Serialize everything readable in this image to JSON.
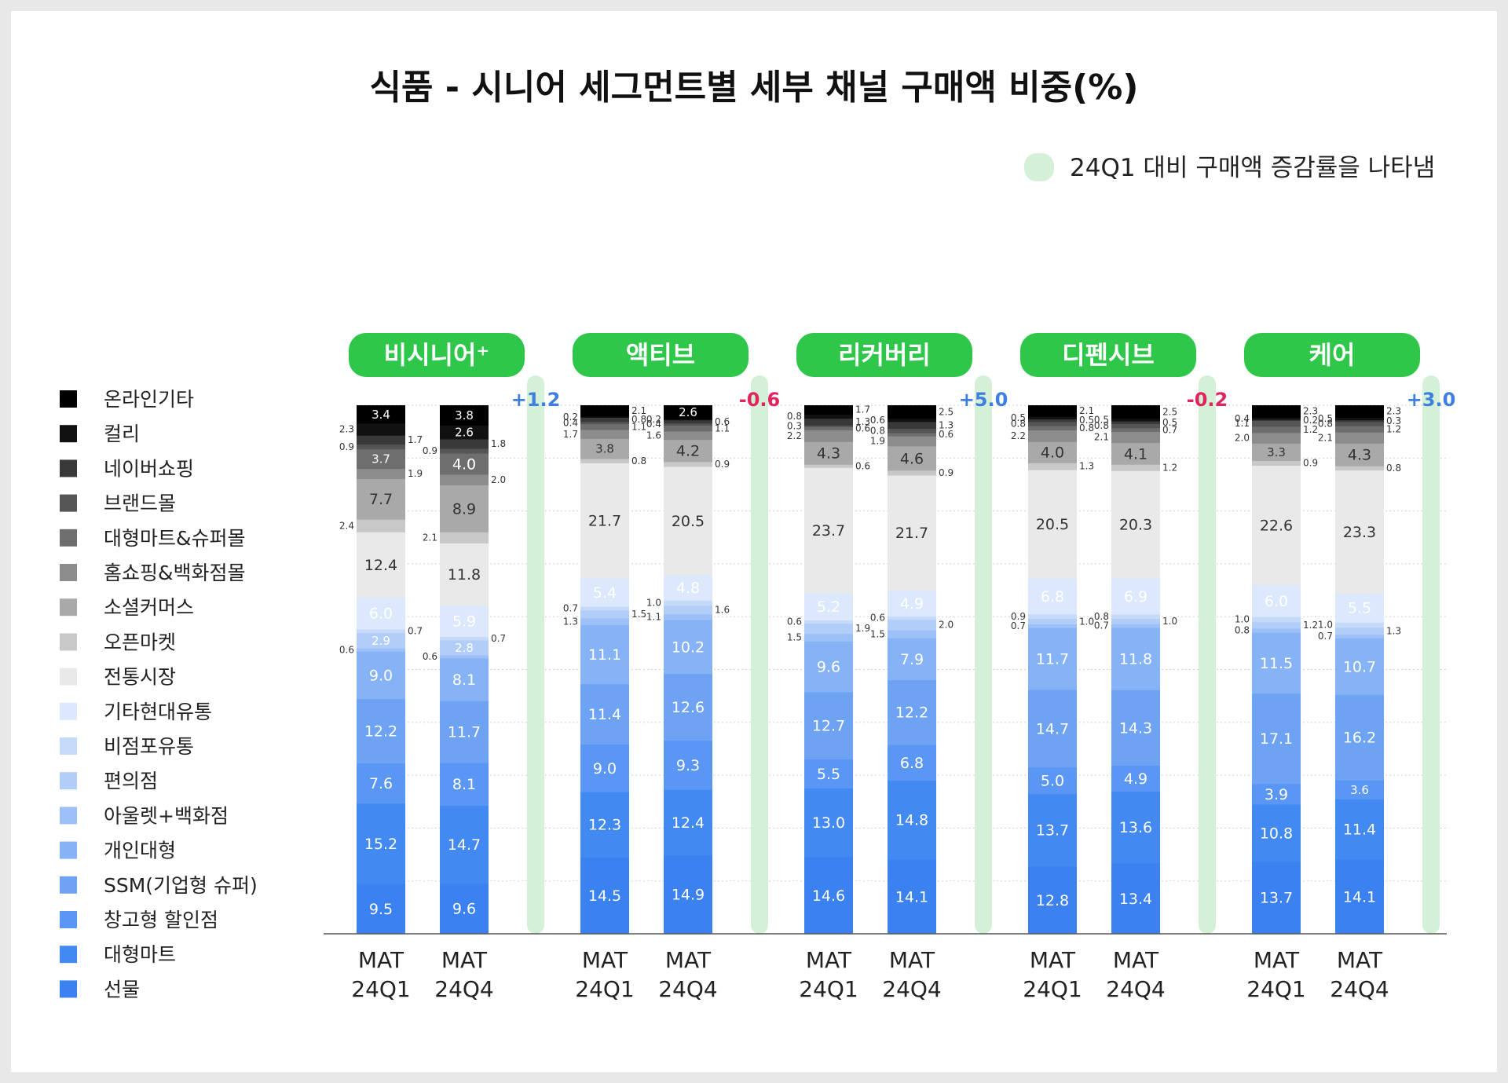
{
  "title": "식품 - 시니어 세그먼트별 세부 채널 구매액 비중(%)",
  "note": "24Q1 대비 구매액 증감률을 나타냄",
  "colors": {
    "segments": [
      "#3b82f0",
      "#4289f1",
      "#5a96f3",
      "#6ea3f4",
      "#86b2f6",
      "#9cc0f7",
      "#b1cdf8",
      "#c5daf9",
      "#dce8fb",
      "#e9e9e9",
      "#c8c8c8",
      "#a9a9a9",
      "#8c8c8c",
      "#6e6e6e",
      "#555555",
      "#393939",
      "#111111",
      "#000000"
    ],
    "group_label_bg": "#2ec74a",
    "indicator": "#d4f1d8",
    "positive": "#3f7fe0",
    "negative": "#e0245e"
  },
  "chart_data": {
    "type": "bar",
    "stacked": true,
    "ylim": [
      0,
      100
    ],
    "legend": [
      "온라인기타",
      "컬리",
      "네이버쇼핑",
      "브랜드몰",
      "대형마트&슈퍼몰",
      "홈쇼핑&백화점몰",
      "소셜커머스",
      "오픈마켓",
      "전통시장",
      "기타현대유통",
      "비점포유통",
      "편의점",
      "아울렛+백화점",
      "개인대형",
      "SSM(기업형 슈퍼)",
      "창고형 할인점",
      "대형마트",
      "선물"
    ],
    "segments_bottom_to_top": [
      "선물",
      "대형마트",
      "창고형 할인점",
      "SSM(기업형 슈퍼)",
      "개인대형",
      "아울렛+백화점",
      "편의점",
      "비점포유통",
      "기타현대유통",
      "전통시장",
      "오픈마켓",
      "소셜커머스",
      "홈쇼핑&백화점몰",
      "대형마트&슈퍼몰",
      "브랜드몰",
      "네이버쇼핑",
      "컬리",
      "온라인기타"
    ],
    "groups": [
      {
        "name": "비시니어⁺",
        "change": "+1.2",
        "bars": [
          {
            "label": "MAT 24Q1",
            "values": [
              9.5,
              15.2,
              7.6,
              12.2,
              9.0,
              0.6,
              2.9,
              0.7,
              6.0,
              12.4,
              2.4,
              7.7,
              1.9,
              3.7,
              0.9,
              1.7,
              2.3,
              3.4
            ]
          },
          {
            "label": "MAT 24Q4",
            "values": [
              9.6,
              14.7,
              8.1,
              11.7,
              8.1,
              0.6,
              2.8,
              0.7,
              5.9,
              11.8,
              2.1,
              8.9,
              2.0,
              4.0,
              0.9,
              1.8,
              2.6,
              3.8
            ]
          }
        ]
      },
      {
        "name": "액티브",
        "change": "-0.6",
        "bars": [
          {
            "label": "MAT 24Q1",
            "values": [
              14.5,
              12.3,
              9.0,
              11.4,
              11.1,
              1.3,
              1.5,
              0.7,
              5.4,
              21.7,
              0.8,
              3.8,
              1.7,
              1.1,
              0.4,
              0.8,
              0.2,
              2.1
            ]
          },
          {
            "label": "MAT 24Q4",
            "values": [
              14.9,
              12.4,
              9.3,
              12.6,
              10.2,
              1.1,
              1.6,
              1.0,
              4.8,
              20.5,
              0.9,
              4.2,
              1.6,
              1.1,
              0.4,
              0.6,
              0.2,
              2.6
            ]
          }
        ]
      },
      {
        "name": "리커버리",
        "change": "+5.0",
        "bars": [
          {
            "label": "MAT 24Q1",
            "values": [
              14.6,
              13.0,
              5.5,
              12.7,
              9.6,
              1.5,
              1.9,
              0.6,
              5.2,
              23.7,
              0.6,
              4.3,
              2.2,
              0.6,
              0.3,
              1.3,
              0.8,
              1.7
            ]
          },
          {
            "label": "MAT 24Q4",
            "values": [
              14.1,
              14.8,
              6.8,
              12.2,
              7.9,
              1.5,
              2.0,
              0.6,
              4.9,
              21.7,
              0.9,
              4.6,
              1.9,
              0.6,
              0.8,
              1.3,
              0.6,
              2.5
            ]
          }
        ]
      },
      {
        "name": "디펜시브",
        "change": "-0.2",
        "bars": [
          {
            "label": "MAT 24Q1",
            "values": [
              12.8,
              13.7,
              5.0,
              14.7,
              11.7,
              0.7,
              1.0,
              0.9,
              6.8,
              20.5,
              1.3,
              4.0,
              2.2,
              0.8,
              0.8,
              0.5,
              0.5,
              2.1
            ]
          },
          {
            "label": "MAT 24Q4",
            "values": [
              13.4,
              13.6,
              4.9,
              14.3,
              11.8,
              0.7,
              1.0,
              0.8,
              6.9,
              20.3,
              1.2,
              4.1,
              2.1,
              0.7,
              0.8,
              0.5,
              0.5,
              2.5
            ]
          }
        ]
      },
      {
        "name": "케어",
        "change": "+3.0",
        "bars": [
          {
            "label": "MAT 24Q1",
            "values": [
              13.7,
              10.8,
              3.9,
              17.1,
              11.5,
              0.8,
              1.2,
              1.0,
              6.0,
              22.6,
              0.9,
              3.3,
              2.0,
              1.2,
              1.1,
              0.2,
              0.4,
              2.3
            ]
          },
          {
            "label": "MAT 24Q4",
            "values": [
              14.1,
              11.4,
              3.6,
              16.2,
              10.7,
              0.7,
              1.3,
              1.0,
              5.5,
              23.3,
              0.8,
              4.3,
              2.1,
              1.2,
              0.8,
              0.3,
              0.5,
              2.3
            ]
          }
        ]
      }
    ]
  }
}
